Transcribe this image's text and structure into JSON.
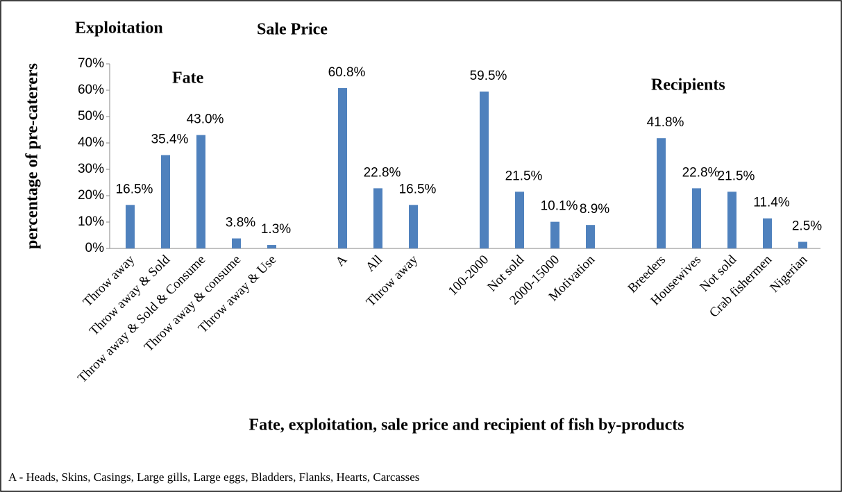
{
  "chart_data": {
    "type": "bar",
    "categories": [
      "Throw away",
      "Throw away & Sold",
      "Throw away & Sold & Consume",
      "Throw away & consume",
      "Throw away & Use",
      null,
      "A",
      "All",
      "Throw away",
      null,
      "100-2000",
      "Not sold",
      "2000-15000",
      "Motivation",
      null,
      "Breeders",
      "Housewives",
      "Not sold",
      "Crab fishermen",
      "Nigerian"
    ],
    "values": [
      16.5,
      35.4,
      43.0,
      3.8,
      1.3,
      null,
      60.8,
      22.8,
      16.5,
      null,
      59.5,
      21.5,
      10.1,
      8.9,
      null,
      41.8,
      22.8,
      21.5,
      11.4,
      2.5
    ],
    "value_labels": [
      "16.5%",
      "35.4%",
      "43.0%",
      "3.8%",
      "1.3%",
      null,
      "60.8%",
      "22.8%",
      "16.5%",
      null,
      "59.5%",
      "21.5%",
      "10.1%",
      "8.9%",
      null,
      "41.8%",
      "22.8%",
      "21.5%",
      "11.4%",
      "2.5%"
    ],
    "color": "#4f81bd",
    "ylim": [
      0,
      70
    ],
    "yticks": [
      {
        "value": 0,
        "label": "0%"
      },
      {
        "value": 10,
        "label": "10%"
      },
      {
        "value": 20,
        "label": "20%"
      },
      {
        "value": 30,
        "label": "30%"
      },
      {
        "value": 40,
        "label": "40%"
      },
      {
        "value": 50,
        "label": "50%"
      },
      {
        "value": 60,
        "label": "60%"
      },
      {
        "value": 70,
        "label": "70%"
      }
    ],
    "y_label": "percentage of  pre-caterers",
    "x_label": "Fate, exploitation, sale price and recipient of fish by-products",
    "annotations": [
      "Exploitation",
      "Sale Price",
      "Fate",
      "Recipients"
    ],
    "footnote": "A - Heads, Skins, Casings, Large gills, Large eggs, Bladders, Flanks, Hearts, Carcasses"
  }
}
